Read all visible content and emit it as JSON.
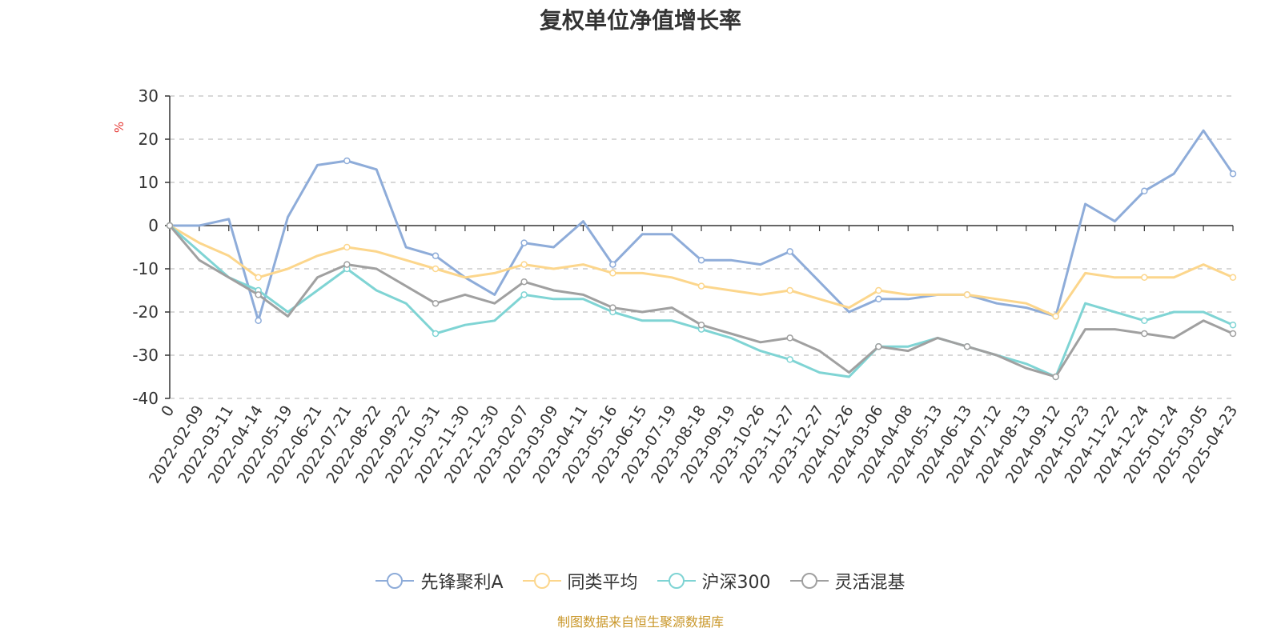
{
  "chart_data": {
    "type": "line",
    "title": "复权单位净值增长率",
    "y_unit": "%",
    "ylim": [
      -40,
      30
    ],
    "yticks": [
      30,
      20,
      10,
      0,
      -10,
      -20,
      -30,
      -40
    ],
    "grid": true,
    "legend_position": "bottom-center",
    "x_tick_labels": [
      "0",
      "2022-02-09",
      "2022-03-11",
      "2022-04-14",
      "2022-05-19",
      "2022-06-21",
      "2022-07-21",
      "2022-08-22",
      "2022-09-22",
      "2022-10-31",
      "2022-11-30",
      "2022-12-30",
      "2023-02-07",
      "2023-03-09",
      "2023-04-11",
      "2023-05-16",
      "2023-06-15",
      "2023-07-19",
      "2023-08-18",
      "2023-09-19",
      "2023-10-26",
      "2023-11-27",
      "2023-12-27",
      "2024-01-26",
      "2024-03-06",
      "2024-04-08",
      "2024-05-13",
      "2024-06-13",
      "2024-07-12",
      "2024-08-13",
      "2024-09-12",
      "2024-10-23",
      "2024-11-22",
      "2024-12-24",
      "2025-01-24",
      "2025-03-05",
      "2025-04-23"
    ],
    "x": [
      "0",
      "2022-02-09",
      "2022-03-11",
      "2022-04-14",
      "2022-05-19",
      "2022-06-21",
      "2022-07-21",
      "2022-08-22",
      "2022-09-22",
      "2022-10-31",
      "2022-11-30",
      "2022-12-30",
      "2023-02-07",
      "2023-03-09",
      "2023-04-11",
      "2023-05-16",
      "2023-06-15",
      "2023-07-19",
      "2023-08-18",
      "2023-09-19",
      "2023-10-26",
      "2023-11-27",
      "2023-12-27",
      "2024-01-26",
      "2024-03-06",
      "2024-04-08",
      "2024-05-13",
      "2024-06-13",
      "2024-07-12",
      "2024-08-13",
      "2024-09-12",
      "2024-10-23",
      "2024-11-22",
      "2024-12-24",
      "2025-01-24",
      "2025-03-05",
      "2025-04-23"
    ],
    "series": [
      {
        "name": "先锋聚利A",
        "color": "#8eacd9",
        "values": [
          0,
          0,
          1.5,
          -22,
          2,
          14,
          15,
          13,
          -5,
          -7,
          -12,
          -16,
          -4,
          -5,
          1,
          -9,
          -2,
          -2,
          -8,
          -8,
          -9,
          -6,
          -13,
          -20,
          -17,
          -17,
          -16,
          -16,
          -18,
          -19,
          -21,
          5,
          1,
          8,
          12,
          22,
          12
        ]
      },
      {
        "name": "同类平均",
        "color": "#fcd68c",
        "values": [
          0,
          -4,
          -7,
          -12,
          -10,
          -7,
          -5,
          -6,
          -8,
          -10,
          -12,
          -11,
          -9,
          -10,
          -9,
          -11,
          -11,
          -12,
          -14,
          -15,
          -16,
          -15,
          -17,
          -19,
          -15,
          -16,
          -16,
          -16,
          -17,
          -18,
          -21,
          -11,
          -12,
          -12,
          -12,
          -9,
          -12
        ]
      },
      {
        "name": "沪深300",
        "color": "#7fd4d4",
        "values": [
          0,
          -6,
          -12,
          -15,
          -20,
          -15,
          -10,
          -15,
          -18,
          -25,
          -23,
          -22,
          -16,
          -17,
          -17,
          -20,
          -22,
          -22,
          -24,
          -26,
          -29,
          -31,
          -34,
          -35,
          -28,
          -28,
          -26,
          -28,
          -30,
          -32,
          -35,
          -18,
          -20,
          -22,
          -20,
          -20,
          -23
        ]
      },
      {
        "name": "灵活混基",
        "color": "#a0a0a0",
        "values": [
          0,
          -8,
          -12,
          -16,
          -21,
          -12,
          -9,
          -10,
          -14,
          -18,
          -16,
          -18,
          -13,
          -15,
          -16,
          -19,
          -20,
          -19,
          -23,
          -25,
          -27,
          -26,
          -29,
          -34,
          -28,
          -29,
          -26,
          -28,
          -30,
          -33,
          -35,
          -24,
          -24,
          -25,
          -26,
          -22,
          -25
        ]
      }
    ]
  },
  "footer": {
    "source": "制图数据来自恒生聚源数据库"
  }
}
